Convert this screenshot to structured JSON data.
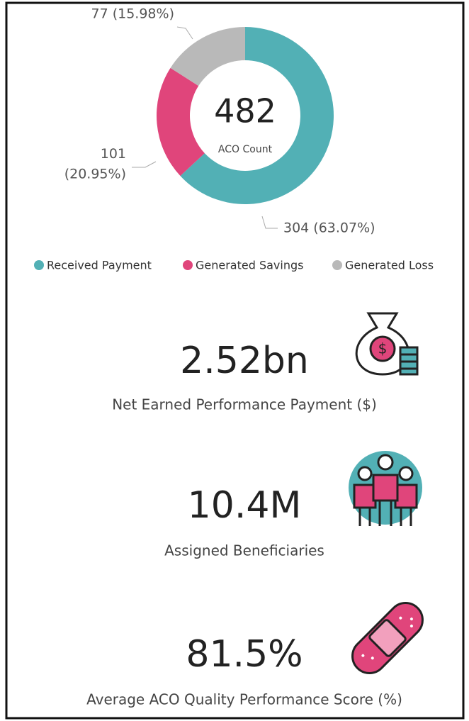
{
  "chart_data": {
    "type": "pie",
    "categories": [
      "Received Payment",
      "Generated Savings",
      "Generated Loss"
    ],
    "values": [
      304,
      101,
      77
    ],
    "value_labels": [
      "304 (63.07%)",
      "101\n(20.95%)",
      "77 (15.98%)"
    ],
    "colors": [
      "#52b0b5",
      "#e0457b",
      "#b9b9b9"
    ],
    "center_value": "482",
    "center_label": "ACO Count",
    "legend": "bottom"
  },
  "kpis": [
    {
      "value": "2.52bn",
      "label": "Net Earned Performance Payment ($)"
    },
    {
      "value": "10.4M",
      "label": "Assigned Beneficiaries"
    },
    {
      "value": "81.5%",
      "label": "Average ACO Quality Performance Score (%)"
    }
  ]
}
